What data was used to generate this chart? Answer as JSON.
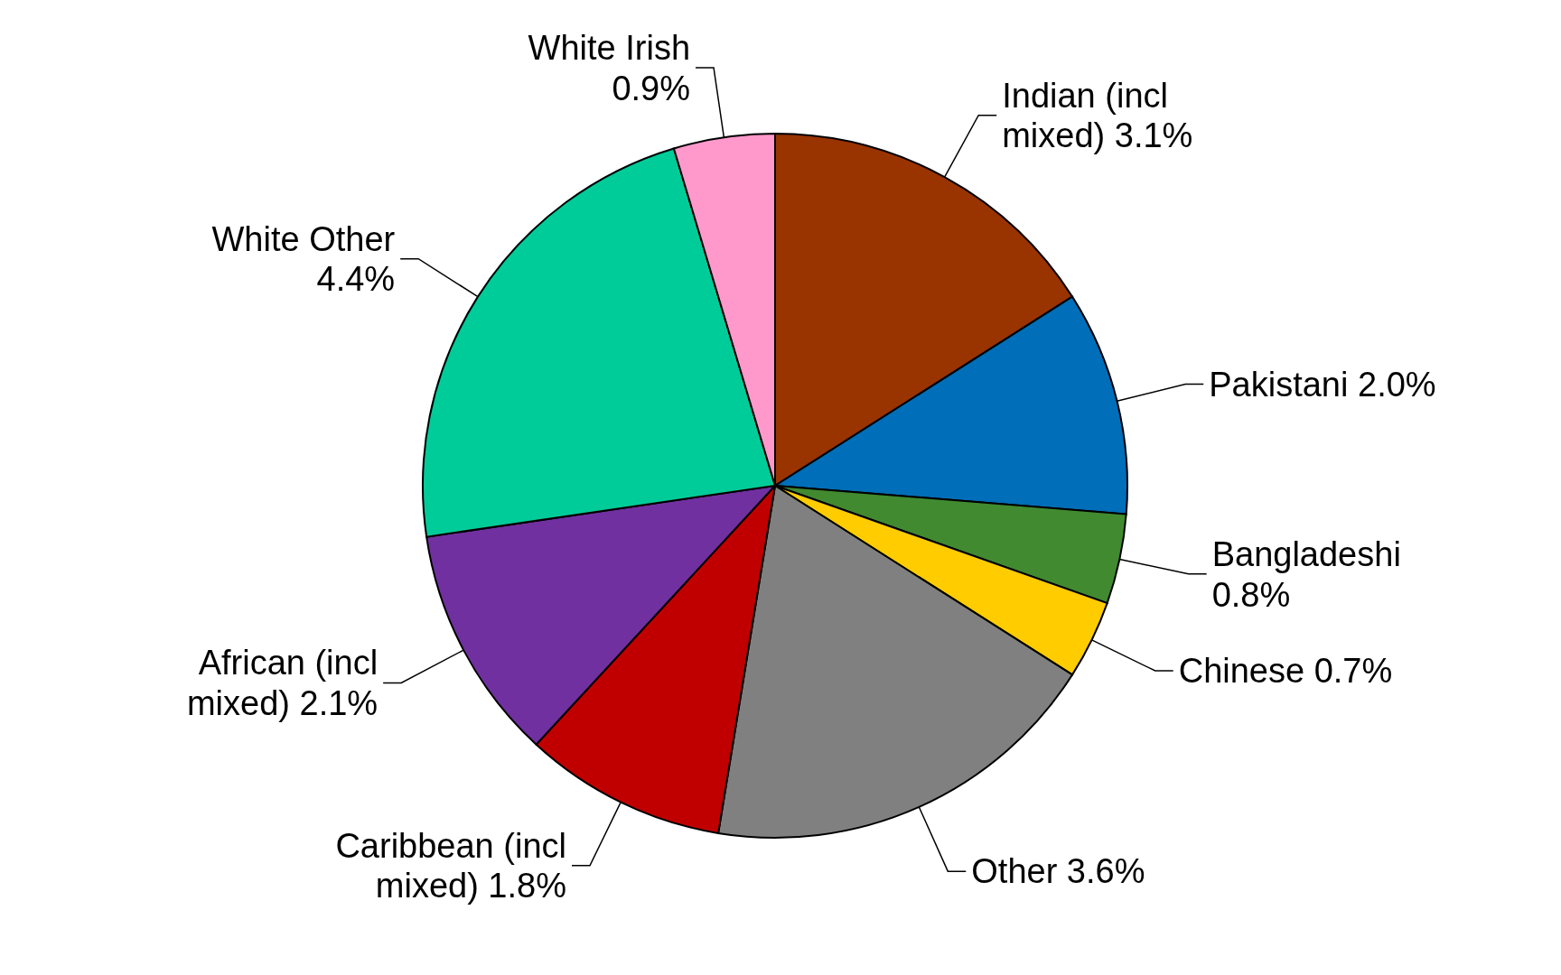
{
  "chart_data": {
    "type": "pie",
    "categories": [
      "Indian (incl mixed)",
      "Pakistani",
      "Bangladeshi",
      "Chinese",
      "Other",
      "Caribbean (incl mixed)",
      "African (incl mixed)",
      "White Other",
      "White Irish"
    ],
    "values": [
      3.1,
      2.0,
      0.8,
      0.7,
      3.6,
      1.8,
      2.1,
      4.4,
      0.9
    ],
    "value_labels": [
      "3.1%",
      "2.0%",
      "0.8%",
      "0.7%",
      "3.6%",
      "1.8%",
      "2.1%",
      "4.4%",
      "0.9%"
    ],
    "colors": [
      "#993300",
      "#006eb8",
      "#418a30",
      "#ffcc00",
      "#808080",
      "#c00000",
      "#7030a0",
      "#00cc99",
      "#ff99cc"
    ]
  }
}
